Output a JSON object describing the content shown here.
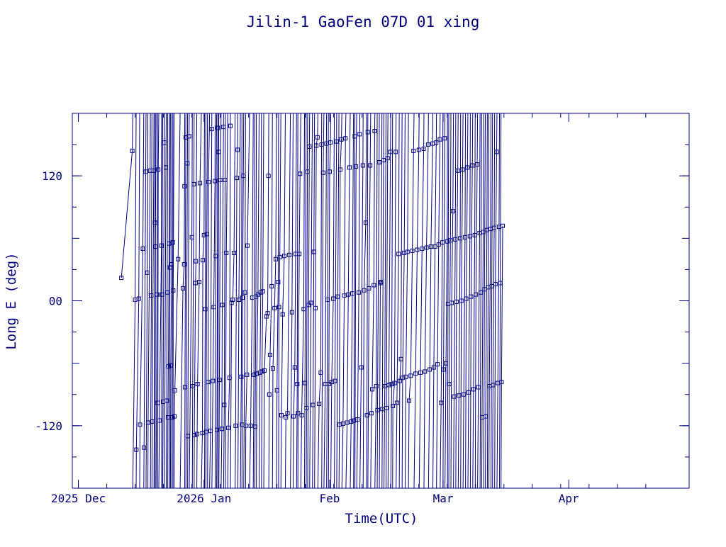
{
  "chart_data": {
    "type": "scatter",
    "title": "Jilin-1 GaoFen 07D 01 xing",
    "xlabel": "Time(UTC)",
    "ylabel": "Long E (deg)",
    "colors": {
      "foreground": "#000080",
      "background": "#ffffff"
    },
    "x_axis": {
      "unit": "days since 2025-12-01",
      "range": [
        -1.5,
        150.7
      ],
      "tick_labels": [
        {
          "label": "2025 Dec",
          "x": 0
        },
        {
          "label": "2026 Jan",
          "x": 31
        },
        {
          "label": "Feb",
          "x": 62
        },
        {
          "label": "Mar",
          "x": 90
        },
        {
          "label": "Apr",
          "x": 121
        }
      ]
    },
    "y_axis": {
      "range": [
        -180,
        180
      ],
      "tick_labels": [
        {
          "label": "120",
          "y": 120
        },
        {
          "label": "00",
          "y": 0
        },
        {
          "label": "-120",
          "y": -120
        }
      ]
    },
    "grid": false,
    "legend": "none",
    "series": [
      {
        "marker": "square",
        "points": [
          [
            10.6,
            22
          ],
          [
            13.3,
            144
          ],
          [
            14.0,
            1
          ],
          [
            14.3,
            -143
          ],
          [
            14.9,
            2
          ],
          [
            15.2,
            -119
          ],
          [
            15.9,
            50
          ],
          [
            16.2,
            -141
          ],
          [
            16.6,
            124
          ],
          [
            17.0,
            27
          ],
          [
            17.2,
            -117
          ],
          [
            17.7,
            125
          ],
          [
            18.0,
            5
          ],
          [
            18.2,
            -116
          ],
          [
            18.6,
            125
          ],
          [
            18.9,
            75
          ],
          [
            19.0,
            52
          ],
          [
            19.4,
            6
          ],
          [
            19.6,
            -98
          ],
          [
            19.7,
            126
          ],
          [
            20.0,
            -115
          ],
          [
            20.5,
            53
          ],
          [
            20.6,
            6
          ],
          [
            20.9,
            -97
          ],
          [
            21.2,
            152
          ],
          [
            21.6,
            128
          ],
          [
            21.8,
            -96
          ],
          [
            21.9,
            8
          ],
          [
            22.1,
            -112
          ],
          [
            22.2,
            -63
          ],
          [
            22.4,
            55
          ],
          [
            22.6,
            32
          ],
          [
            22.8,
            -62
          ],
          [
            23.0,
            35
          ],
          [
            23.1,
            -112
          ],
          [
            23.3,
            56
          ],
          [
            23.4,
            10
          ],
          [
            23.7,
            -111
          ],
          [
            23.8,
            -86
          ],
          [
            24.6,
            40
          ],
          [
            25.8,
            12
          ],
          [
            26.1,
            35
          ],
          [
            26.2,
            110
          ],
          [
            26.3,
            -83
          ],
          [
            26.5,
            157
          ],
          [
            26.9,
            132
          ],
          [
            27.0,
            -130
          ],
          [
            27.3,
            158
          ],
          [
            28.0,
            61
          ],
          [
            28.2,
            -82
          ],
          [
            28.5,
            112
          ],
          [
            28.6,
            -129
          ],
          [
            28.9,
            17
          ],
          [
            29.0,
            38
          ],
          [
            29.3,
            -128
          ],
          [
            29.4,
            -80
          ],
          [
            29.8,
            18
          ],
          [
            30.0,
            113
          ],
          [
            30.6,
            -127
          ],
          [
            30.7,
            39
          ],
          [
            31.0,
            63
          ],
          [
            31.3,
            -8
          ],
          [
            31.5,
            -126
          ],
          [
            31.7,
            64
          ],
          [
            32.0,
            -78
          ],
          [
            32.1,
            114
          ],
          [
            32.6,
            -125
          ],
          [
            32.9,
            165
          ],
          [
            33.2,
            -77
          ],
          [
            33.4,
            -6
          ],
          [
            33.7,
            115
          ],
          [
            33.9,
            43
          ],
          [
            34.2,
            -124
          ],
          [
            34.4,
            166
          ],
          [
            34.6,
            143
          ],
          [
            34.8,
            -76
          ],
          [
            35.0,
            116
          ],
          [
            35.4,
            -123
          ],
          [
            35.5,
            -4
          ],
          [
            35.8,
            167
          ],
          [
            36.0,
            -100
          ],
          [
            36.2,
            116
          ],
          [
            36.5,
            46
          ],
          [
            37.0,
            -122
          ],
          [
            37.3,
            -74
          ],
          [
            37.5,
            168
          ],
          [
            37.8,
            -2
          ],
          [
            38.1,
            1
          ],
          [
            38.4,
            46
          ],
          [
            38.8,
            -120
          ],
          [
            39.1,
            118
          ],
          [
            39.3,
            145
          ],
          [
            39.6,
            1
          ],
          [
            40.2,
            -73
          ],
          [
            40.4,
            -119
          ],
          [
            40.5,
            3
          ],
          [
            40.7,
            120
          ],
          [
            41.1,
            8
          ],
          [
            41.3,
            -120
          ],
          [
            41.6,
            -71
          ],
          [
            41.7,
            53
          ],
          [
            42.5,
            -120
          ],
          [
            42.9,
            3
          ],
          [
            43.3,
            -71
          ],
          [
            43.6,
            -121
          ],
          [
            43.8,
            4
          ],
          [
            44.0,
            -70
          ],
          [
            44.3,
            6
          ],
          [
            44.8,
            -69
          ],
          [
            45.0,
            8
          ],
          [
            45.3,
            -68
          ],
          [
            45.5,
            9
          ],
          [
            45.9,
            -67
          ],
          [
            46.4,
            -15
          ],
          [
            46.7,
            -12
          ],
          [
            46.9,
            120
          ],
          [
            47.1,
            -90
          ],
          [
            47.3,
            -52
          ],
          [
            47.7,
            14
          ],
          [
            48.0,
            -65
          ],
          [
            48.4,
            -7
          ],
          [
            48.7,
            40
          ],
          [
            49.0,
            -86
          ],
          [
            49.3,
            18
          ],
          [
            49.5,
            -6
          ],
          [
            49.7,
            42
          ],
          [
            50.1,
            -110
          ],
          [
            50.4,
            -13
          ],
          [
            50.8,
            43
          ],
          [
            51.2,
            -112
          ],
          [
            51.6,
            -108
          ],
          [
            52.0,
            44
          ],
          [
            52.7,
            -11
          ],
          [
            53.1,
            -111
          ],
          [
            53.4,
            -64
          ],
          [
            53.6,
            45
          ],
          [
            54.0,
            -80
          ],
          [
            54.2,
            -108
          ],
          [
            54.5,
            45
          ],
          [
            54.7,
            122
          ],
          [
            55.1,
            -110
          ],
          [
            55.6,
            -8
          ],
          [
            55.9,
            -79
          ],
          [
            56.3,
            -103
          ],
          [
            56.5,
            124
          ],
          [
            56.8,
            -4
          ],
          [
            57.0,
            148
          ],
          [
            57.4,
            -2
          ],
          [
            57.9,
            -100
          ],
          [
            58.1,
            47
          ],
          [
            58.5,
            -7
          ],
          [
            58.7,
            149
          ],
          [
            59.0,
            157
          ],
          [
            59.4,
            -99
          ],
          [
            59.8,
            -69
          ],
          [
            60.0,
            150
          ],
          [
            60.4,
            123
          ],
          [
            60.9,
            -80
          ],
          [
            61.2,
            151
          ],
          [
            61.5,
            1
          ],
          [
            61.8,
            -80
          ],
          [
            62.0,
            124
          ],
          [
            62.2,
            152
          ],
          [
            62.5,
            -78
          ],
          [
            62.9,
            2
          ],
          [
            63.3,
            -77
          ],
          [
            63.7,
            153
          ],
          [
            64.0,
            4
          ],
          [
            64.4,
            -119
          ],
          [
            64.6,
            126
          ],
          [
            64.9,
            155
          ],
          [
            65.3,
            -118
          ],
          [
            65.6,
            5
          ],
          [
            65.9,
            156
          ],
          [
            66.3,
            -117
          ],
          [
            66.6,
            6
          ],
          [
            66.9,
            128
          ],
          [
            67.3,
            -116
          ],
          [
            67.6,
            7
          ],
          [
            68.0,
            -115
          ],
          [
            68.2,
            158
          ],
          [
            68.5,
            129
          ],
          [
            68.9,
            -114
          ],
          [
            69.2,
            8
          ],
          [
            69.4,
            160
          ],
          [
            69.8,
            -64
          ],
          [
            70.2,
            130
          ],
          [
            70.5,
            10
          ],
          [
            70.9,
            75
          ],
          [
            71.2,
            -110
          ],
          [
            71.4,
            162
          ],
          [
            71.7,
            12
          ],
          [
            72.0,
            130
          ],
          [
            72.3,
            -108
          ],
          [
            72.5,
            -85
          ],
          [
            72.9,
            15
          ],
          [
            73.1,
            163
          ],
          [
            73.5,
            -82
          ],
          [
            73.8,
            -105
          ],
          [
            74.2,
            133
          ],
          [
            74.5,
            17
          ],
          [
            74.7,
            18
          ],
          [
            75.0,
            -104
          ],
          [
            75.3,
            135
          ],
          [
            75.6,
            -82
          ],
          [
            76.0,
            -103
          ],
          [
            76.3,
            137
          ],
          [
            76.6,
            -81
          ],
          [
            77.0,
            143
          ],
          [
            77.3,
            -80
          ],
          [
            77.6,
            -101
          ],
          [
            78.0,
            -79
          ],
          [
            78.3,
            143
          ],
          [
            78.6,
            -98
          ],
          [
            79.0,
            45
          ],
          [
            79.3,
            -77
          ],
          [
            79.6,
            -56
          ],
          [
            80.0,
            -74
          ],
          [
            80.4,
            46
          ],
          [
            80.8,
            -73
          ],
          [
            81.2,
            47
          ],
          [
            81.6,
            -96
          ],
          [
            82.0,
            -72
          ],
          [
            82.4,
            48
          ],
          [
            82.7,
            144
          ],
          [
            83.2,
            -70
          ],
          [
            83.6,
            49
          ],
          [
            84.0,
            145
          ],
          [
            84.4,
            -69
          ],
          [
            84.8,
            50
          ],
          [
            85.2,
            146
          ],
          [
            85.5,
            -68
          ],
          [
            85.9,
            51
          ],
          [
            86.3,
            150
          ],
          [
            86.7,
            -66
          ],
          [
            87.0,
            52
          ],
          [
            87.4,
            151
          ],
          [
            87.7,
            -64
          ],
          [
            88.0,
            52
          ],
          [
            88.3,
            152
          ],
          [
            88.6,
            -61
          ],
          [
            88.9,
            54
          ],
          [
            89.2,
            155
          ],
          [
            89.5,
            -98
          ],
          [
            89.8,
            56
          ],
          [
            90.1,
            -66
          ],
          [
            90.4,
            156
          ],
          [
            90.7,
            -60
          ],
          [
            91.0,
            57
          ],
          [
            91.2,
            -3
          ],
          [
            91.5,
            -80
          ],
          [
            91.8,
            58
          ],
          [
            92.1,
            -2
          ],
          [
            92.4,
            86
          ],
          [
            92.7,
            -92
          ],
          [
            93.0,
            59
          ],
          [
            93.3,
            -1
          ],
          [
            93.6,
            125
          ],
          [
            93.9,
            -91
          ],
          [
            94.2,
            60
          ],
          [
            94.5,
            0
          ],
          [
            94.8,
            126
          ],
          [
            95.1,
            -90
          ],
          [
            95.4,
            61
          ],
          [
            95.7,
            2
          ],
          [
            96.0,
            128
          ],
          [
            96.3,
            -88
          ],
          [
            96.6,
            62
          ],
          [
            96.9,
            4
          ],
          [
            97.2,
            130
          ],
          [
            97.5,
            -85
          ],
          [
            97.8,
            63
          ],
          [
            98.1,
            6
          ],
          [
            98.4,
            131
          ],
          [
            98.7,
            -83
          ],
          [
            99.0,
            65
          ],
          [
            99.3,
            8
          ],
          [
            99.6,
            -112
          ],
          [
            99.9,
            66
          ],
          [
            100.2,
            11
          ],
          [
            100.5,
            -111
          ],
          [
            100.8,
            68
          ],
          [
            101.1,
            13
          ],
          [
            101.4,
            -82
          ],
          [
            101.7,
            69
          ],
          [
            102.0,
            14
          ],
          [
            102.3,
            -81
          ],
          [
            102.6,
            70
          ],
          [
            102.9,
            16
          ],
          [
            103.2,
            143
          ],
          [
            103.5,
            -79
          ],
          [
            103.8,
            71
          ],
          [
            104.1,
            17
          ],
          [
            104.4,
            -78
          ],
          [
            104.7,
            72
          ]
        ]
      }
    ]
  }
}
